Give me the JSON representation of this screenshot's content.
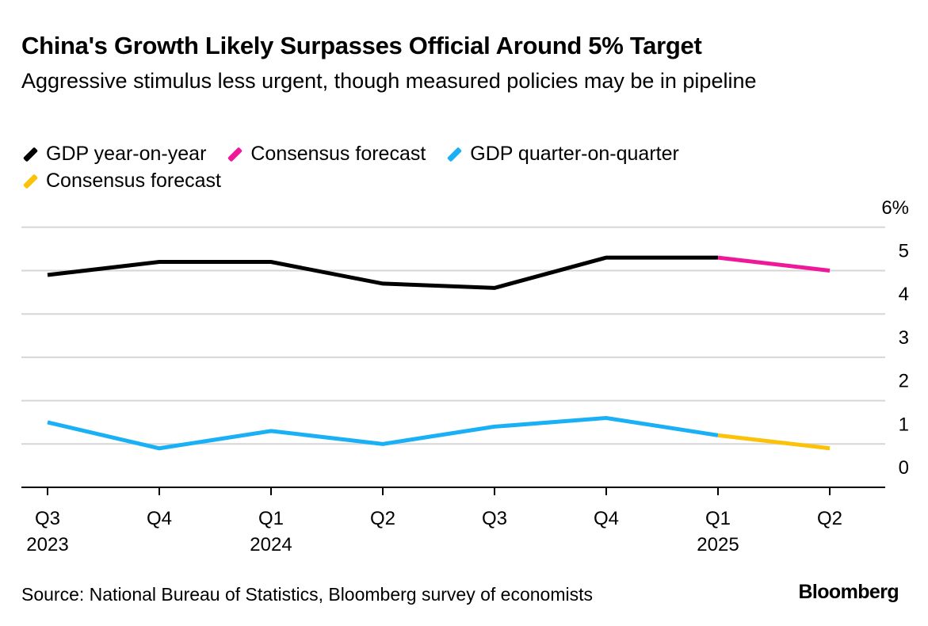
{
  "header": {
    "title": "China's Growth Likely Surpasses Official Around 5% Target",
    "subtitle": "Aggressive stimulus less urgent, though measured policies may be in pipeline"
  },
  "legend": [
    {
      "label": "GDP year-on-year",
      "color": "#000000"
    },
    {
      "label": "Consensus forecast",
      "color": "#f0189a"
    },
    {
      "label": "GDP quarter-on-quarter",
      "color": "#1ab0f5"
    },
    {
      "label": "Consensus forecast",
      "color": "#fcc20a"
    }
  ],
  "footer": {
    "source": "Source: National Bureau of Statistics, Bloomberg survey of economists",
    "brand": "Bloomberg"
  },
  "chart_data": {
    "type": "line",
    "title": "China's Growth Likely Surpasses Official Around 5% Target",
    "categories": [
      "Q3",
      "Q4",
      "Q1",
      "Q2",
      "Q3",
      "Q4",
      "Q1",
      "Q2"
    ],
    "year_labels": [
      "2023",
      "",
      "2024",
      "",
      "",
      "",
      "2025",
      ""
    ],
    "ylim": [
      0,
      6
    ],
    "yticks": [
      0,
      1,
      2,
      3,
      4,
      5,
      6
    ],
    "ytick_labels": [
      "0",
      "1",
      "2",
      "3",
      "4",
      "5",
      "6%"
    ],
    "ylabel": "",
    "xlabel": "",
    "grid": true,
    "series": [
      {
        "name": "GDP year-on-year",
        "color": "#000000",
        "values": [
          4.9,
          5.2,
          5.2,
          4.7,
          4.6,
          5.3,
          5.3,
          null
        ]
      },
      {
        "name": "Consensus forecast",
        "color": "#f0189a",
        "values": [
          null,
          null,
          null,
          null,
          null,
          null,
          5.3,
          5.0
        ]
      },
      {
        "name": "GDP quarter-on-quarter",
        "color": "#1ab0f5",
        "values": [
          1.5,
          0.9,
          1.3,
          1.0,
          1.4,
          1.6,
          1.2,
          null
        ]
      },
      {
        "name": "Consensus forecast",
        "color": "#fcc20a",
        "values": [
          null,
          null,
          null,
          null,
          null,
          null,
          1.2,
          0.9
        ]
      }
    ]
  }
}
